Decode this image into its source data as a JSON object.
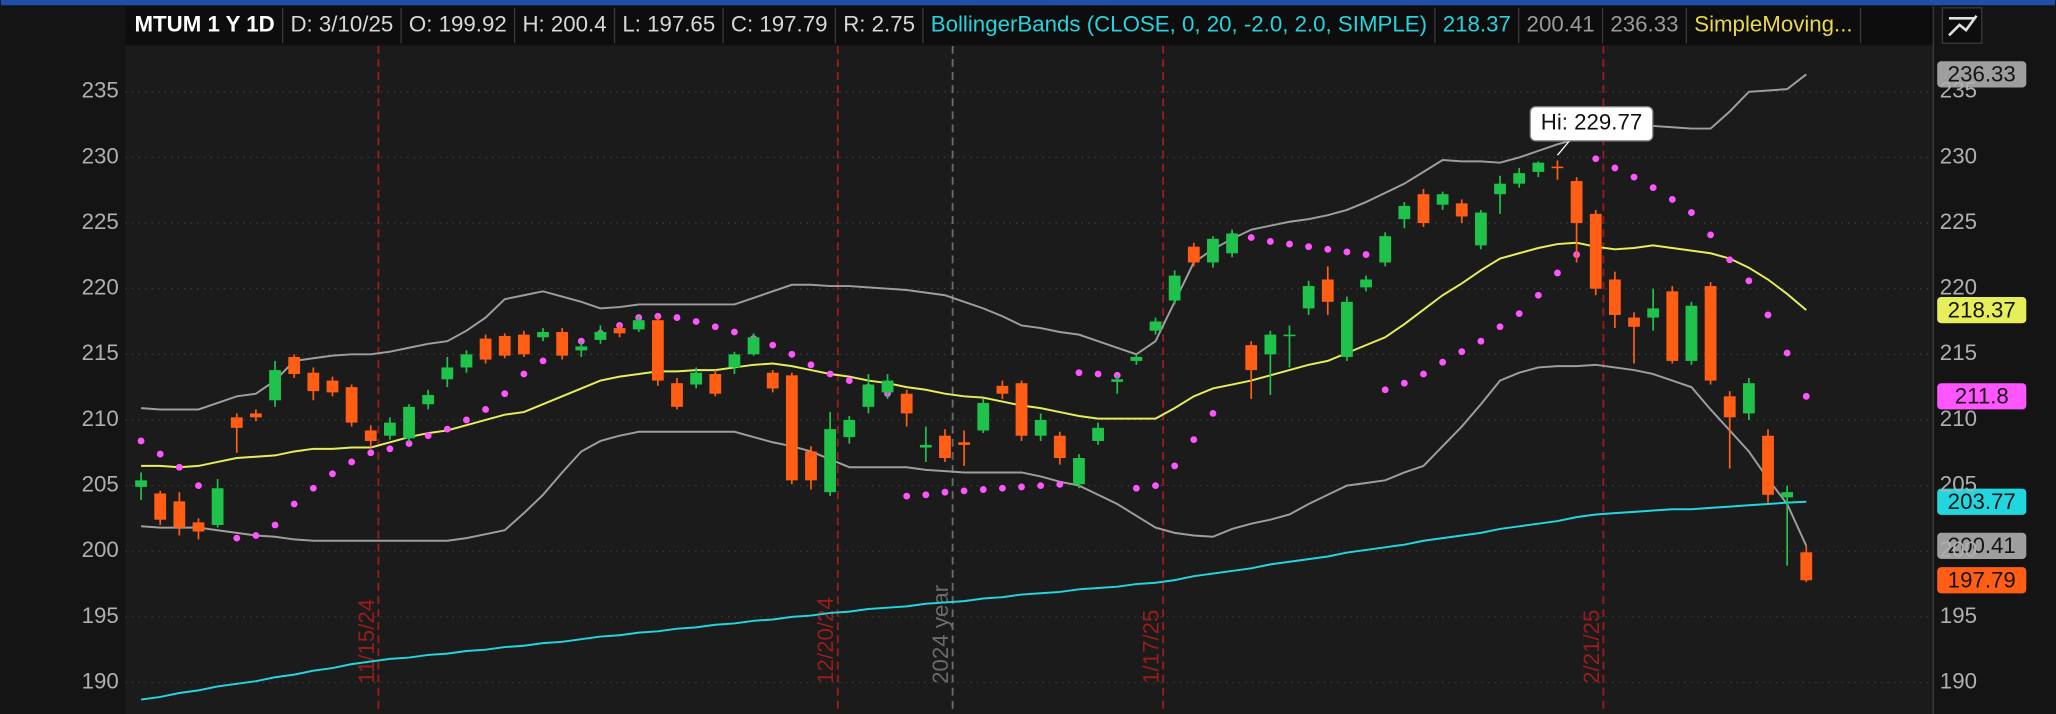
{
  "chart_data": {
    "type": "candlestick",
    "header": [
      {
        "text": "MTUM 1 Y 1D",
        "color": "#ffffff"
      },
      {
        "text": "D: 3/10/25",
        "color": "#d8d8d8"
      },
      {
        "text": "O: 199.92",
        "color": "#d8d8d8"
      },
      {
        "text": "H: 200.4",
        "color": "#d8d8d8"
      },
      {
        "text": "L: 197.65",
        "color": "#d8d8d8"
      },
      {
        "text": "C: 197.79",
        "color": "#d8d8d8"
      },
      {
        "text": "R: 2.75",
        "color": "#d8d8d8"
      },
      {
        "text": "BollingerBands (CLOSE, 0, 20, -2.0, 2.0, SIMPLE)",
        "color": "#27d3dc"
      },
      {
        "text": "218.37",
        "color": "#27d3dc"
      },
      {
        "text": "200.41",
        "color": "#9a9a9a"
      },
      {
        "text": "236.33",
        "color": "#9a9a9a"
      },
      {
        "text": "SimpleMoving...",
        "color": "#e8d84a"
      }
    ],
    "annotation": "Hi: 229.77",
    "categories": [
      null,
      null,
      null,
      null,
      null,
      null,
      null,
      null,
      null,
      null,
      null,
      null,
      "11/15/24",
      null,
      null,
      null,
      null,
      null,
      null,
      null,
      null,
      null,
      null,
      null,
      null,
      null,
      null,
      null,
      null,
      null,
      null,
      null,
      null,
      null,
      null,
      null,
      "12/20/24",
      null,
      null,
      null,
      null,
      null,
      "2024 year",
      null,
      null,
      null,
      null,
      null,
      null,
      null,
      null,
      null,
      null,
      "1/17/25",
      null,
      null,
      null,
      null,
      null,
      null,
      null,
      null,
      null,
      null,
      null,
      null,
      null,
      null,
      null,
      null,
      null,
      null,
      null,
      null,
      null,
      null,
      "2/21/25",
      null,
      null,
      null,
      null,
      null,
      null,
      null,
      null,
      null,
      null,
      null
    ],
    "marker_colors": [
      "#9b1c1c",
      "#9b1c1c",
      "#6b6b6b",
      "#9b1c1c",
      "#9b1c1c"
    ],
    "open": [
      204.9,
      204.4,
      203.8,
      202.2,
      202,
      210.2,
      210.5,
      211.5,
      214.8,
      213.6,
      213,
      212.5,
      209.2,
      208.8,
      208.6,
      211.2,
      213.1,
      214,
      216.2,
      216.4,
      216.5,
      216.3,
      216.7,
      215.3,
      216.1,
      217,
      216.9,
      217.6,
      212.8,
      212.7,
      213.5,
      214,
      215,
      213.6,
      213.4,
      207.6,
      204.5,
      208.7,
      211,
      212.1,
      212,
      207.9,
      208.8,
      208.3,
      209.2,
      212.6,
      212.8,
      208.8,
      208.8,
      205.1,
      208.4,
      212.9,
      214.5,
      216.8,
      219.1,
      223.2,
      222,
      222.7,
      215.7,
      215,
      216.4,
      218.5,
      220.7,
      214.8,
      220.1,
      222,
      225.3,
      227.2,
      226.4,
      226.5,
      223.3,
      227.2,
      228,
      228.9,
      229.3,
      228.2,
      225.7,
      220.7,
      217.8,
      217.8,
      219.8,
      214.5,
      220.2,
      211.8,
      210.5,
      208.8,
      204.1,
      199.92
    ],
    "high": [
      206,
      204.6,
      204.5,
      202.5,
      205.5,
      210.5,
      210.8,
      214.5,
      215,
      214,
      213.3,
      212.7,
      209.6,
      210.2,
      211.2,
      212.3,
      214.8,
      215.3,
      216.5,
      216.6,
      216.8,
      217,
      217,
      216,
      217.2,
      217.3,
      217.9,
      217.9,
      213.2,
      214,
      213.8,
      215.2,
      216.6,
      213.8,
      213.6,
      208,
      210.6,
      210.3,
      213.5,
      213.5,
      212.3,
      209.5,
      209.3,
      209.2,
      211.6,
      213,
      213,
      210.5,
      209.1,
      207.4,
      209.8,
      213.4,
      215,
      217.8,
      221.4,
      223.5,
      224,
      224.5,
      216,
      216.8,
      217.2,
      220.6,
      221.7,
      219.4,
      221,
      224.3,
      226.6,
      227.6,
      227.4,
      226.8,
      226,
      228.6,
      229.2,
      229.7,
      229.77,
      228.5,
      226,
      221.3,
      218.2,
      220,
      220.2,
      219,
      220.5,
      212.2,
      213.2,
      209.3,
      205,
      200.4
    ],
    "low": [
      203.9,
      202,
      201.2,
      200.9,
      201.8,
      207.5,
      209.9,
      211,
      213.2,
      211.5,
      211.8,
      209.5,
      207.9,
      208.5,
      208.3,
      210.8,
      212.5,
      213.6,
      214.3,
      214.7,
      214.8,
      216,
      214.6,
      214.8,
      215.8,
      216.3,
      216.7,
      212.6,
      210.8,
      212.4,
      211.8,
      213.5,
      214.9,
      212.1,
      205.1,
      204.7,
      204.2,
      208.2,
      210.5,
      211.6,
      209.5,
      206.8,
      206.8,
      206.5,
      209,
      211.6,
      208.4,
      208.4,
      206.6,
      204.8,
      208.1,
      212,
      214.2,
      216.5,
      218.8,
      221.7,
      221.6,
      222.4,
      211.6,
      211.9,
      214,
      218,
      218,
      214.5,
      219.8,
      221.7,
      224.6,
      224.7,
      226,
      225,
      223,
      225.7,
      227.7,
      228.5,
      228.3,
      222,
      219.5,
      217,
      214.3,
      216.8,
      214.3,
      214.2,
      212.7,
      206.3,
      210,
      203.7,
      198.9,
      197.65
    ],
    "close": [
      205.4,
      202.4,
      201.8,
      201.5,
      204.8,
      209.4,
      210.2,
      213.8,
      213.5,
      212.2,
      212.1,
      209.8,
      208.4,
      209.8,
      211,
      211.9,
      214,
      215,
      214.6,
      214.9,
      215,
      216.7,
      214.9,
      215.6,
      216.7,
      216.6,
      217.6,
      213,
      211,
      213.6,
      212,
      215,
      216.3,
      212.4,
      205.4,
      205.4,
      209.3,
      210,
      212.7,
      213,
      210.5,
      208.1,
      207.1,
      208.1,
      211.3,
      212,
      208.8,
      210,
      207.1,
      207.1,
      209.4,
      213.1,
      214.8,
      217.5,
      221,
      222,
      223.8,
      224.2,
      213.8,
      216.5,
      216.5,
      220.2,
      219,
      219,
      220.7,
      224,
      226.3,
      225,
      227.2,
      225.5,
      225.8,
      228,
      228.8,
      229.6,
      229.2,
      225,
      220,
      218,
      217.1,
      218.5,
      214.5,
      218.7,
      213,
      210.2,
      212.8,
      204.3,
      204.5,
      197.79
    ],
    "up_color": "#1fc24a",
    "down_color": "#ff5e14",
    "series": [
      {
        "style": "line",
        "color": "#9e9e9e",
        "values": [
          210.9,
          210.8,
          210.8,
          210.8,
          211.3,
          211.8,
          212,
          213,
          214.5,
          214.7,
          214.9,
          215,
          215,
          215.2,
          215.5,
          215.8,
          216,
          216.8,
          217.8,
          219.2,
          219.5,
          219.8,
          219.4,
          219,
          218.5,
          218.6,
          218.8,
          218.8,
          218.8,
          218.8,
          218.8,
          218.8,
          219.3,
          219.8,
          220.3,
          220.3,
          220.2,
          220.2,
          220.1,
          220,
          219.9,
          219.7,
          219.5,
          219,
          218.5,
          217.9,
          217.2,
          217,
          216.7,
          216.5,
          216,
          215.5,
          215,
          216,
          219,
          222,
          223,
          223.8,
          224.5,
          224.8,
          225.1,
          225.3,
          225.6,
          226,
          226.6,
          227.3,
          228,
          228.9,
          229.8,
          229.7,
          229.7,
          229.6,
          230,
          230.5,
          231,
          231.4,
          231.8,
          232.1,
          232.5,
          232.4,
          232.3,
          232.2,
          232.2,
          233.5,
          235,
          235.1,
          235.2,
          236.33
        ]
      },
      {
        "style": "line",
        "color": "#e6ee5a",
        "values": [
          206.5,
          206.5,
          206.4,
          206.5,
          206.8,
          207.1,
          207.2,
          207.3,
          207.6,
          207.8,
          207.8,
          207.9,
          207.9,
          208.3,
          208.7,
          209,
          209.2,
          209.6,
          210,
          210.4,
          210.6,
          211.2,
          211.8,
          212.4,
          213,
          213.3,
          213.5,
          213.7,
          213.7,
          213.8,
          213.8,
          214,
          214.2,
          214.3,
          214.1,
          213.8,
          213.5,
          213.3,
          213,
          212.8,
          212.5,
          212.3,
          212,
          211.8,
          211.7,
          211.4,
          211.1,
          210.9,
          210.6,
          210.3,
          210.1,
          210.1,
          210.1,
          210.1,
          210.9,
          211.8,
          212.4,
          212.7,
          213,
          213.4,
          213.8,
          214.2,
          214.5,
          215.1,
          215.7,
          216.3,
          217.3,
          218.4,
          219.5,
          220.4,
          221.4,
          222.3,
          222.7,
          223.1,
          223.4,
          223.5,
          223.2,
          223,
          223.1,
          223.3,
          223.1,
          222.9,
          222.7,
          222.3,
          221.6,
          220.7,
          219.6,
          218.37
        ]
      },
      {
        "style": "line",
        "color": "#9e9e9e",
        "values": [
          201.9,
          201.8,
          201.8,
          201.8,
          201.6,
          201.4,
          201.2,
          201.1,
          200.9,
          200.8,
          200.8,
          200.8,
          200.8,
          200.8,
          200.8,
          200.8,
          200.8,
          201,
          201.3,
          201.6,
          202.9,
          204.3,
          206,
          207.6,
          208.4,
          208.8,
          209.1,
          209.1,
          209.1,
          209.1,
          209.1,
          209.1,
          208.7,
          208.3,
          208,
          207.6,
          207,
          206.4,
          206.4,
          206.4,
          206.4,
          206.2,
          206.1,
          206,
          206,
          206,
          206,
          205.7,
          205.3,
          205,
          204.3,
          203.6,
          202.7,
          201.8,
          201.4,
          201.2,
          201.1,
          201.7,
          202.1,
          202.4,
          202.8,
          203.6,
          204.3,
          205,
          205.2,
          205.4,
          206,
          206.5,
          208,
          209.5,
          211.2,
          213,
          213.6,
          214,
          214.1,
          214.1,
          214.2,
          214,
          213.8,
          213.5,
          213,
          212.5,
          210.8,
          209.2,
          207.6,
          205.5,
          203.6,
          200.41
        ]
      },
      {
        "style": "line",
        "color": "#22d6e0",
        "values": [
          188.7,
          188.9,
          189.2,
          189.4,
          189.7,
          189.9,
          190.1,
          190.4,
          190.6,
          190.9,
          191.1,
          191.4,
          191.6,
          191.8,
          191.9,
          192.1,
          192.2,
          192.4,
          192.5,
          192.7,
          192.8,
          193,
          193.1,
          193.3,
          193.5,
          193.6,
          193.8,
          193.9,
          194.1,
          194.2,
          194.4,
          194.5,
          194.7,
          194.8,
          195,
          195.1,
          195.3,
          195.4,
          195.6,
          195.7,
          195.8,
          196,
          196.1,
          196.2,
          196.4,
          196.5,
          196.7,
          196.8,
          196.9,
          197.1,
          197.2,
          197.3,
          197.5,
          197.6,
          197.8,
          198.1,
          198.3,
          198.5,
          198.7,
          199,
          199.2,
          199.4,
          199.6,
          199.9,
          200.1,
          200.3,
          200.5,
          200.8,
          201,
          201.2,
          201.4,
          201.7,
          201.9,
          202.1,
          202.3,
          202.6,
          202.8,
          202.9,
          203,
          203.1,
          203.2,
          203.2,
          203.3,
          203.4,
          203.5,
          203.6,
          203.7,
          203.77
        ]
      },
      {
        "style": "dots",
        "color": "#ff55ff",
        "values": [
          208.4,
          207.4,
          206.4,
          205,
          202.6,
          201,
          201.2,
          202,
          203.6,
          204.8,
          205.9,
          206.8,
          207.5,
          207.8,
          208.2,
          208.8,
          209.3,
          210,
          210.8,
          212,
          213.5,
          214.5,
          215.3,
          216,
          216.6,
          217.2,
          217.8,
          217.9,
          217.8,
          217.5,
          217.1,
          216.7,
          216.2,
          215.7,
          215,
          214.2,
          213.5,
          213,
          212.5,
          212,
          204.2,
          204.3,
          204.5,
          204.6,
          204.7,
          204.8,
          204.9,
          205,
          205.1,
          213.6,
          213.5,
          213.4,
          204.8,
          205,
          206.5,
          208.5,
          210.5,
          224,
          223.9,
          223.6,
          223.4,
          223.2,
          223,
          222.8,
          222.6,
          212.3,
          212.8,
          213.5,
          214.4,
          215.2,
          216,
          217.1,
          218.1,
          219.5,
          221.2,
          222.6,
          229.9,
          229.2,
          228.5,
          227.7,
          226.8,
          225.8,
          224.1,
          222.2,
          220.6,
          218,
          215.1,
          211.8
        ]
      }
    ],
    "ylim": [
      187.6,
      238.5
    ],
    "yticks": [
      190,
      195,
      200,
      205,
      210,
      215,
      220,
      225,
      230,
      235
    ],
    "grid": true
  }
}
